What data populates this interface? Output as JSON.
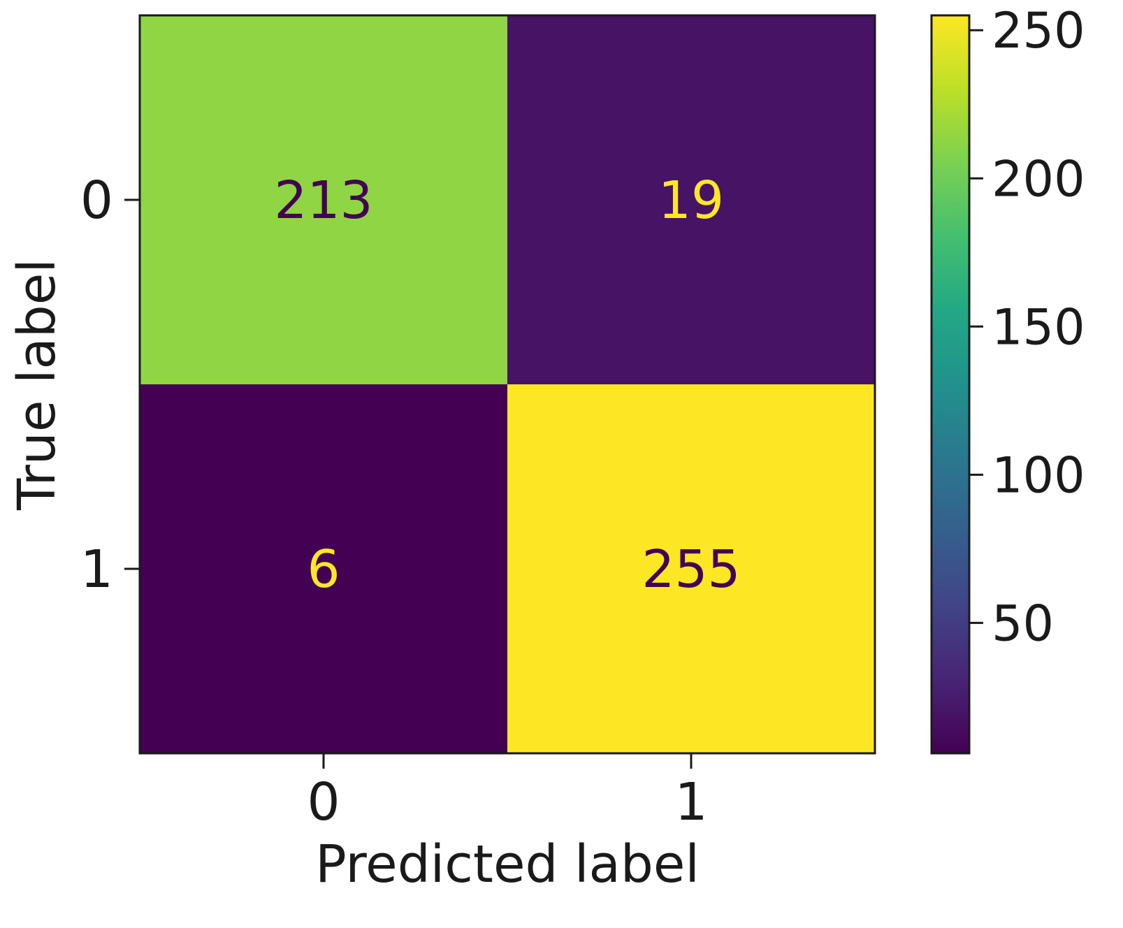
{
  "chart_data": {
    "type": "heatmap",
    "title": "",
    "xlabel": "Predicted label",
    "ylabel": "True label",
    "x_categories": [
      "0",
      "1"
    ],
    "y_categories": [
      "0",
      "1"
    ],
    "values": [
      [
        213,
        19
      ],
      [
        6,
        255
      ]
    ],
    "colormap": "viridis",
    "colorbar": {
      "range": [
        6,
        255
      ],
      "ticks": [
        50,
        100,
        150,
        200,
        250
      ],
      "tick_labels": [
        "50",
        "100",
        "150",
        "200",
        "250"
      ]
    },
    "text_colors": {
      "dark": "#440154",
      "light": "#fde725"
    }
  }
}
